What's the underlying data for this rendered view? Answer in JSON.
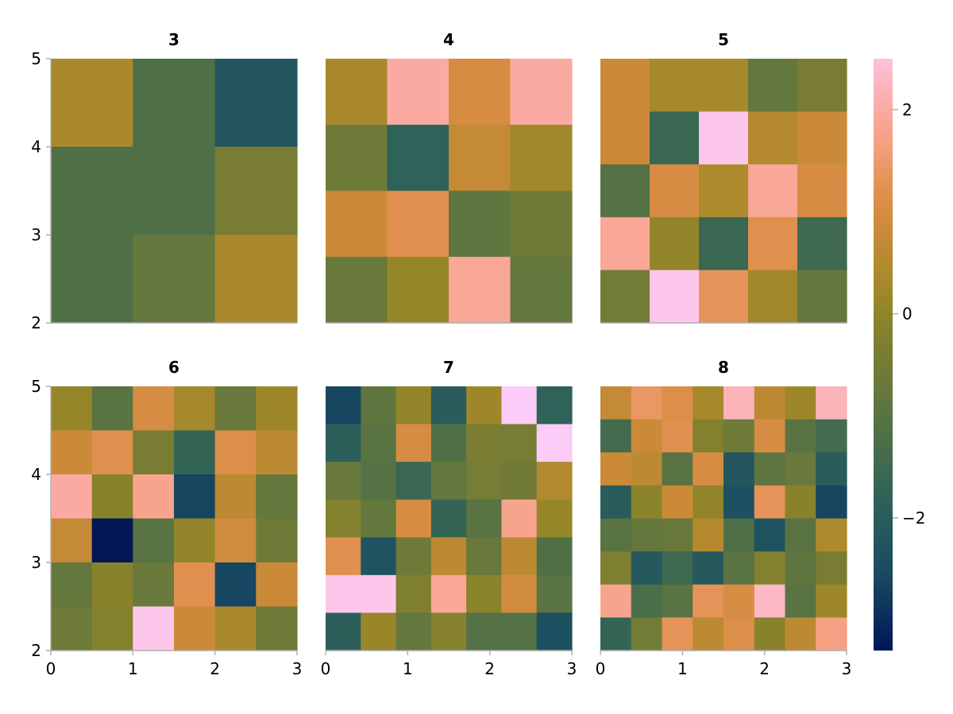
{
  "chart_data": {
    "type": "heatmap",
    "colormap": {
      "name": "batlow-like",
      "stops": [
        [
          -3.3,
          "#021656"
        ],
        [
          -2.5,
          "#1a4d63"
        ],
        [
          -1.8,
          "#2f6258"
        ],
        [
          -1.2,
          "#4f7047"
        ],
        [
          -0.6,
          "#6e7a38"
        ],
        [
          0.0,
          "#8e8429"
        ],
        [
          0.4,
          "#ad8a2c"
        ],
        [
          0.8,
          "#cb8a38"
        ],
        [
          1.2,
          "#e0904e"
        ],
        [
          1.6,
          "#f39d78"
        ],
        [
          2.0,
          "#fbaaa1"
        ],
        [
          2.5,
          "#fcc2dc"
        ],
        [
          2.7,
          "#fbccf7"
        ]
      ]
    },
    "colorbar": {
      "range": [
        -3.3,
        2.5
      ],
      "ticks": [
        2,
        0,
        -2
      ],
      "tick_labels": [
        "2",
        "0",
        "−2"
      ]
    },
    "x_ticks": [
      0,
      1,
      2,
      3
    ],
    "x_tick_labels": [
      "0",
      "1",
      "2",
      "3"
    ],
    "y_ticks": [
      2,
      3,
      4,
      5
    ],
    "y_tick_labels": [
      "2",
      "3",
      "4",
      "5"
    ],
    "xlim": [
      0,
      3
    ],
    "ylim": [
      2,
      5
    ],
    "grid": false,
    "panels": [
      {
        "title": "3",
        "values": [
          [
            0.35,
            -1.2,
            -2.2
          ],
          [
            -1.2,
            -1.2,
            -0.4
          ],
          [
            -1.2,
            -0.8,
            0.35
          ]
        ]
      },
      {
        "title": "4",
        "values": [
          [
            0.35,
            2.0,
            1.0,
            2.0
          ],
          [
            -0.6,
            -1.8,
            0.7,
            0.25
          ],
          [
            0.8,
            1.2,
            -0.9,
            -0.55
          ],
          [
            -0.7,
            0.1,
            1.9,
            -0.8
          ]
        ]
      },
      {
        "title": "5",
        "values": [
          [
            0.8,
            0.3,
            0.3,
            -0.8,
            -0.4
          ],
          [
            0.8,
            -1.6,
            2.6,
            0.5,
            0.8
          ],
          [
            -1.1,
            1.0,
            0.4,
            1.9,
            1.0
          ],
          [
            1.9,
            0.05,
            -1.6,
            1.2,
            -1.5
          ],
          [
            -0.5,
            2.6,
            1.3,
            0.25,
            -0.8
          ]
        ]
      },
      {
        "title": "6",
        "values": [
          [
            0.1,
            -1.0,
            1.0,
            0.3,
            -0.7,
            0.2
          ],
          [
            0.8,
            1.2,
            -0.4,
            -1.7,
            1.1,
            0.6
          ],
          [
            2.0,
            -0.1,
            1.8,
            -2.6,
            0.6,
            -0.8
          ],
          [
            0.7,
            -3.3,
            -1.0,
            0.05,
            0.9,
            -0.6
          ],
          [
            -0.8,
            -0.1,
            -0.7,
            1.2,
            -2.6,
            0.8
          ],
          [
            -0.6,
            -0.2,
            2.6,
            0.8,
            0.35,
            -0.6
          ]
        ]
      },
      {
        "title": "7",
        "values": [
          [
            -2.6,
            -0.9,
            0.05,
            -2.0,
            0.2,
            2.7,
            -1.8
          ],
          [
            -1.9,
            -1.0,
            1.0,
            -1.2,
            -0.35,
            -0.45,
            2.7
          ],
          [
            -0.7,
            -1.1,
            -1.6,
            -0.8,
            -0.45,
            -0.55,
            0.45
          ],
          [
            -0.2,
            -0.8,
            1.0,
            -1.7,
            -1.0,
            1.8,
            0.1
          ],
          [
            1.2,
            -2.3,
            -0.6,
            0.6,
            -0.7,
            0.6,
            -1.2
          ],
          [
            2.6,
            2.6,
            -0.3,
            1.9,
            -0.05,
            0.9,
            -1.0
          ],
          [
            -1.9,
            0.15,
            -0.8,
            -0.15,
            -1.1,
            -1.1,
            -2.4
          ]
        ]
      },
      {
        "title": "8",
        "values": [
          [
            0.7,
            1.4,
            1.1,
            0.3,
            2.2,
            0.6,
            0.2,
            2.2
          ],
          [
            -1.4,
            0.8,
            1.2,
            -0.2,
            -0.6,
            1.0,
            -1.0,
            -1.4
          ],
          [
            0.8,
            0.6,
            -1.0,
            1.0,
            -2.2,
            -0.9,
            -0.7,
            -2.0
          ],
          [
            -2.0,
            -0.05,
            0.8,
            0.05,
            -2.4,
            1.3,
            -0.1,
            -2.6
          ],
          [
            -1.0,
            -0.8,
            -0.7,
            0.5,
            -1.2,
            -2.3,
            -1.0,
            0.4
          ],
          [
            -0.3,
            -2.1,
            -1.5,
            -2.1,
            -1.0,
            -0.2,
            -0.9,
            -0.4
          ],
          [
            1.8,
            -1.3,
            -1.0,
            1.3,
            1.0,
            2.3,
            -1.0,
            0.2
          ],
          [
            -1.7,
            -0.5,
            1.3,
            0.6,
            1.1,
            -0.1,
            0.6,
            1.7
          ]
        ]
      }
    ]
  }
}
